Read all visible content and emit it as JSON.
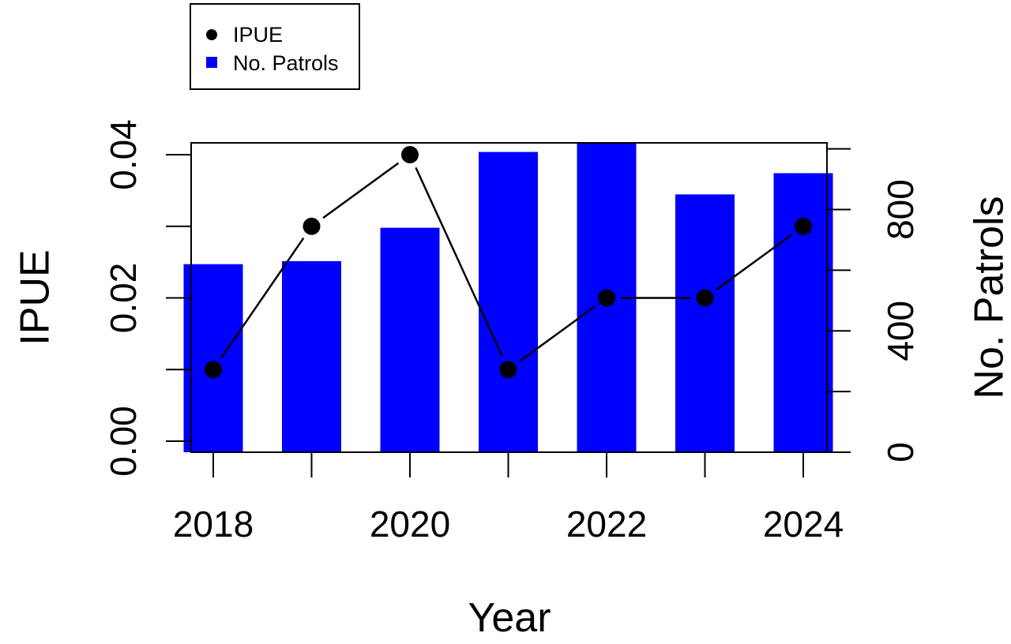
{
  "chart_data": {
    "type": "bar",
    "categories": [
      "2018",
      "2019",
      "2020",
      "2021",
      "2022",
      "2023",
      "2024"
    ],
    "x": [
      2018,
      2019,
      2020,
      2021,
      2022,
      2023,
      2024
    ],
    "series": [
      {
        "name": "No. Patrols",
        "type": "bar",
        "axis": "right",
        "color": "#0000ff",
        "values": [
          620,
          630,
          740,
          990,
          1020,
          850,
          920
        ]
      },
      {
        "name": "IPUE",
        "type": "line",
        "axis": "left",
        "color": "#000000",
        "values": [
          0.01,
          0.03,
          0.04,
          0.01,
          0.02,
          0.02,
          0.03
        ]
      }
    ],
    "xlabel": "Year",
    "ylabel": "IPUE",
    "y2label": "No. Patrols",
    "xlim": [
      2017.8,
      2024.2
    ],
    "ylim": [
      0,
      0.042
    ],
    "y2lim": [
      0,
      1020
    ],
    "x_ticks": [
      2018,
      2019,
      2020,
      2021,
      2022,
      2023,
      2024
    ],
    "x_tick_labels": [
      "2018",
      "2020",
      "2022",
      "2024"
    ],
    "y_ticks": [
      0,
      0.01,
      0.02,
      0.03,
      0.04
    ],
    "y_tick_labels": [
      "0.00",
      "0.02",
      "0.04"
    ],
    "y2_ticks": [
      0,
      200,
      400,
      600,
      800,
      1000
    ],
    "y2_tick_labels": [
      "0",
      "400",
      "800"
    ],
    "legend": {
      "placement": "top-left",
      "entries": [
        "IPUE",
        "No. Patrols"
      ]
    },
    "grid": false
  }
}
